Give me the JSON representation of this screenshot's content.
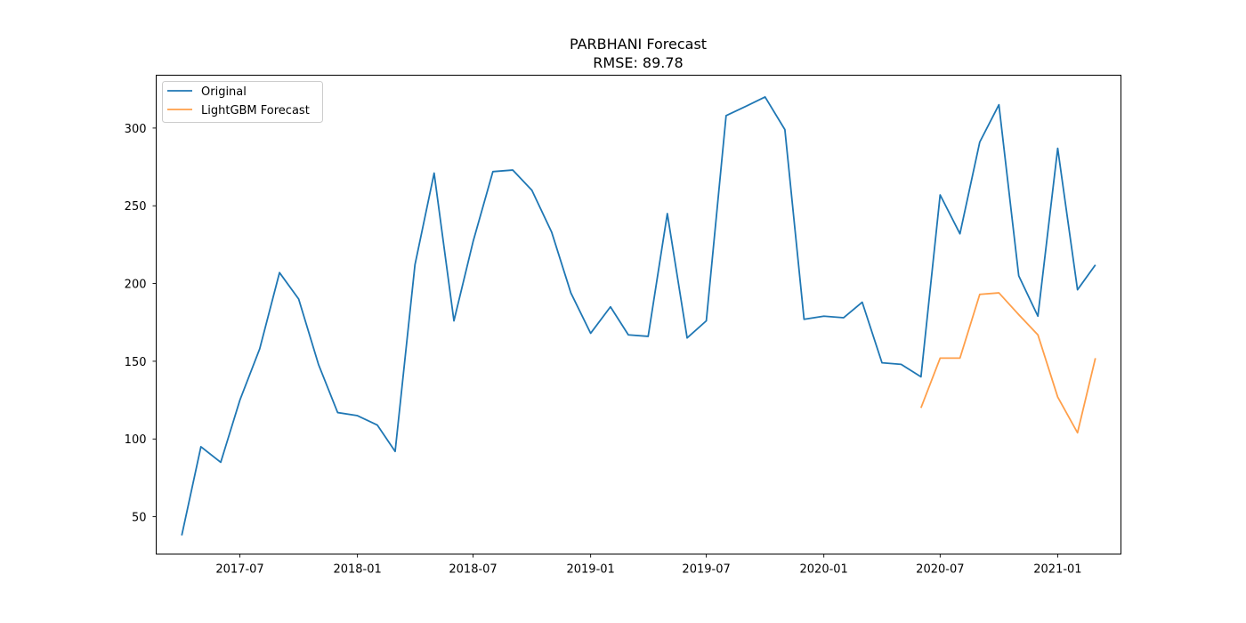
{
  "chart_data": {
    "type": "line",
    "title": "PARBHANI Forecast",
    "subtitle": "RMSE: 89.78",
    "xlabel": "",
    "ylabel": "",
    "x_ticks": [
      "2017-07",
      "2018-01",
      "2018-07",
      "2019-01",
      "2019-07",
      "2020-01",
      "2020-07",
      "2021-01"
    ],
    "y_ticks": [
      50,
      100,
      150,
      200,
      250,
      300
    ],
    "xlim": [
      "2017-02-20",
      "2021-04-10"
    ],
    "ylim": [
      26,
      334
    ],
    "grid": false,
    "legend_position": "top-left",
    "series": [
      {
        "name": "Original",
        "color": "#1f77b4",
        "points": [
          [
            "2017-04-01",
            38
          ],
          [
            "2017-05-01",
            95
          ],
          [
            "2017-06-01",
            85
          ],
          [
            "2017-07-01",
            125
          ],
          [
            "2017-08-01",
            158
          ],
          [
            "2017-09-01",
            207
          ],
          [
            "2017-10-01",
            190
          ],
          [
            "2017-11-01",
            148
          ],
          [
            "2017-12-01",
            117
          ],
          [
            "2018-01-01",
            115
          ],
          [
            "2018-02-01",
            109
          ],
          [
            "2018-03-01",
            92
          ],
          [
            "2018-04-01",
            212
          ],
          [
            "2018-05-01",
            271
          ],
          [
            "2018-06-01",
            176
          ],
          [
            "2018-07-01",
            227
          ],
          [
            "2018-08-01",
            272
          ],
          [
            "2018-09-01",
            273
          ],
          [
            "2018-10-01",
            260
          ],
          [
            "2018-11-01",
            233
          ],
          [
            "2018-12-01",
            194
          ],
          [
            "2019-01-01",
            168
          ],
          [
            "2019-02-01",
            185
          ],
          [
            "2019-03-01",
            167
          ],
          [
            "2019-04-01",
            166
          ],
          [
            "2019-05-01",
            245
          ],
          [
            "2019-06-01",
            165
          ],
          [
            "2019-07-01",
            176
          ],
          [
            "2019-08-01",
            308
          ],
          [
            "2019-09-01",
            314
          ],
          [
            "2019-10-01",
            320
          ],
          [
            "2019-11-01",
            299
          ],
          [
            "2019-12-01",
            177
          ],
          [
            "2020-01-01",
            179
          ],
          [
            "2020-02-01",
            178
          ],
          [
            "2020-03-01",
            188
          ],
          [
            "2020-04-01",
            149
          ],
          [
            "2020-05-01",
            148
          ],
          [
            "2020-06-01",
            140
          ],
          [
            "2020-07-01",
            257
          ],
          [
            "2020-08-01",
            232
          ],
          [
            "2020-09-01",
            291
          ],
          [
            "2020-10-01",
            315
          ],
          [
            "2020-11-01",
            205
          ],
          [
            "2020-12-01",
            179
          ],
          [
            "2021-01-01",
            287
          ],
          [
            "2021-02-01",
            196
          ],
          [
            "2021-03-01",
            212
          ]
        ]
      },
      {
        "name": "LightGBM Forecast",
        "color": "#ff7f0e",
        "points": [
          [
            "2020-06-01",
            120
          ],
          [
            "2020-07-01",
            152
          ],
          [
            "2020-08-01",
            152
          ],
          [
            "2020-09-01",
            193
          ],
          [
            "2020-10-01",
            194
          ],
          [
            "2020-11-01",
            180
          ],
          [
            "2020-12-01",
            167
          ],
          [
            "2021-01-01",
            127
          ],
          [
            "2021-02-01",
            104
          ],
          [
            "2021-03-01",
            152
          ]
        ]
      }
    ]
  }
}
